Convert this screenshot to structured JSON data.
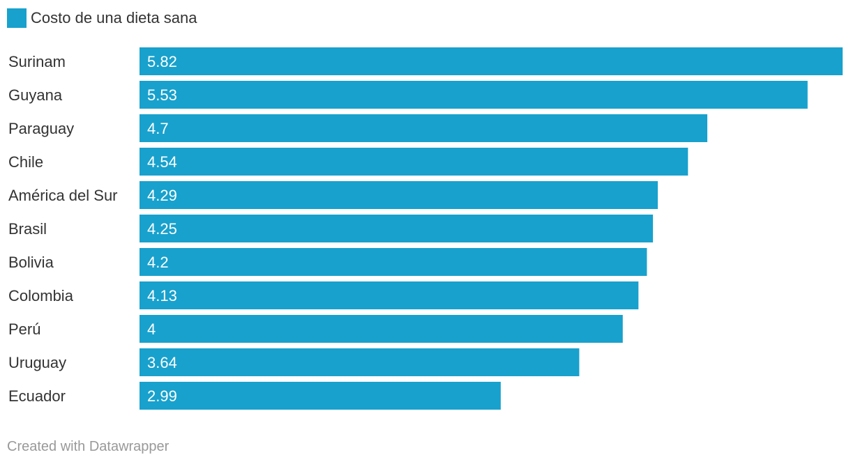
{
  "legend": {
    "label": "Costo de una dieta sana",
    "color": "#18a1cd"
  },
  "chart_data": {
    "type": "bar",
    "orientation": "horizontal",
    "categories": [
      "Surinam",
      "Guyana",
      "Paraguay",
      "Chile",
      "América del Sur",
      "Brasil",
      "Bolivia",
      "Colombia",
      "Perú",
      "Uruguay",
      "Ecuador"
    ],
    "series": [
      {
        "name": "Costo de una dieta sana",
        "values": [
          5.82,
          5.53,
          4.7,
          4.54,
          4.29,
          4.25,
          4.2,
          4.13,
          4,
          3.64,
          2.99
        ],
        "labels": [
          "5.82",
          "5.53",
          "4.7",
          "4.54",
          "4.29",
          "4.25",
          "4.2",
          "4.13",
          "4",
          "3.64",
          "2.99"
        ]
      }
    ],
    "xlim": [
      0,
      5.82
    ],
    "grid": false,
    "legend_position": "top-left",
    "bar_color": "#18a1cd"
  },
  "footer": {
    "credit": "Created with Datawrapper"
  }
}
